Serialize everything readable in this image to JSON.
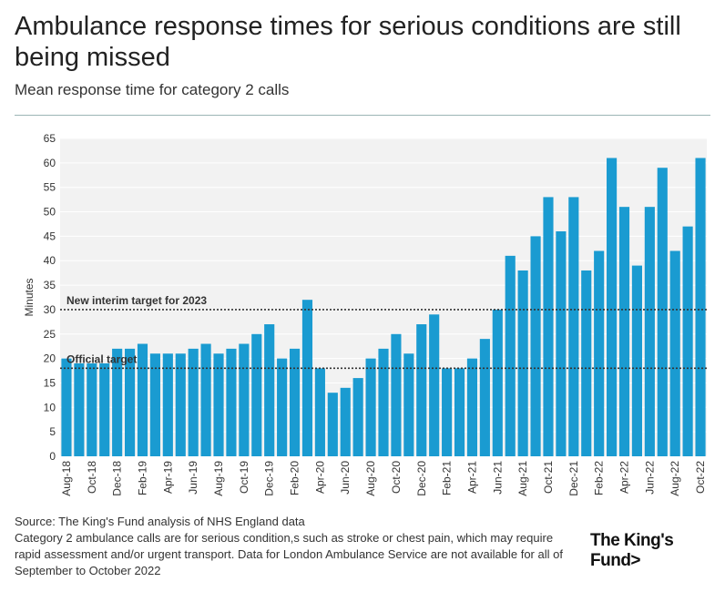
{
  "header": {
    "title": "Ambulance response times for serious conditions are still being missed",
    "subtitle": "Mean response time for category 2 calls"
  },
  "footer": {
    "source": "Source: The King's Fund analysis of NHS England data",
    "note": "Category 2 ambulance calls are for serious condition,s such as stroke or chest pain, which may require rapid assessment and/or urgent transport. Data for London Ambulance Service are not available for all of September to October 2022"
  },
  "brand": {
    "logo_text": "The King's Fund>"
  },
  "colors": {
    "bar": "#1a9bd1",
    "plot_bg": "#f2f2f2",
    "grid": "#ffffff",
    "reference_line": "#333333"
  },
  "chart_data": {
    "type": "bar",
    "title": "Ambulance response times for serious conditions are still being missed",
    "subtitle": "Mean response time for category 2 calls",
    "xlabel": "",
    "ylabel": "Minutes",
    "ylim": [
      0,
      65
    ],
    "yticks": [
      0,
      5,
      10,
      15,
      20,
      25,
      30,
      35,
      40,
      45,
      50,
      55,
      60,
      65
    ],
    "grid": true,
    "categories": [
      "Aug-18",
      "Sep-18",
      "Oct-18",
      "Nov-18",
      "Dec-18",
      "Jan-19",
      "Feb-19",
      "Mar-19",
      "Apr-19",
      "May-19",
      "Jun-19",
      "Jul-19",
      "Aug-19",
      "Sep-19",
      "Oct-19",
      "Nov-19",
      "Dec-19",
      "Jan-20",
      "Feb-20",
      "Mar-20",
      "Apr-20",
      "May-20",
      "Jun-20",
      "Jul-20",
      "Aug-20",
      "Sep-20",
      "Oct-20",
      "Nov-20",
      "Dec-20",
      "Jan-21",
      "Feb-21",
      "Mar-21",
      "Apr-21",
      "May-21",
      "Jun-21",
      "Jul-21",
      "Aug-21",
      "Sep-21",
      "Oct-21",
      "Nov-21",
      "Dec-21",
      "Jan-22",
      "Feb-22",
      "Mar-22",
      "Apr-22",
      "May-22",
      "Jun-22",
      "Jul-22",
      "Aug-22",
      "Sep-22",
      "Oct-22"
    ],
    "x_tick_labels": [
      "Aug-18",
      "Oct-18",
      "Dec-18",
      "Feb-19",
      "Apr-19",
      "Jun-19",
      "Aug-19",
      "Oct-19",
      "Dec-19",
      "Feb-20",
      "Apr-20",
      "Jun-20",
      "Aug-20",
      "Oct-20",
      "Dec-20",
      "Feb-21",
      "Apr-21",
      "Jun-21",
      "Aug-21",
      "Oct-21",
      "Dec-21",
      "Feb-22",
      "Apr-22",
      "Jun-22",
      "Aug-22",
      "Oct-22"
    ],
    "values": [
      20,
      19,
      19,
      19,
      22,
      22,
      23,
      21,
      21,
      21,
      22,
      23,
      21,
      22,
      23,
      25,
      27,
      20,
      22,
      32,
      18,
      13,
      14,
      16,
      20,
      22,
      25,
      21,
      27,
      29,
      18,
      18,
      20,
      24,
      30,
      41,
      38,
      45,
      53,
      46,
      53,
      38,
      42,
      61,
      51,
      39,
      51,
      59,
      42,
      47,
      61
    ],
    "reference_lines": [
      {
        "value": 30,
        "label": "New interim target for 2023"
      },
      {
        "value": 18,
        "label": "Official target"
      }
    ]
  }
}
